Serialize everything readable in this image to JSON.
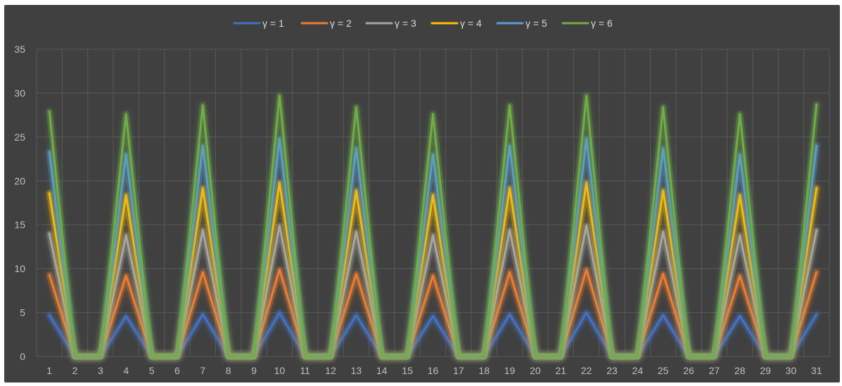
{
  "chart_data": {
    "type": "line",
    "title": "",
    "xlabel": "",
    "ylabel": "",
    "x": [
      1,
      2,
      3,
      4,
      5,
      6,
      7,
      8,
      9,
      10,
      11,
      12,
      13,
      14,
      15,
      16,
      17,
      18,
      19,
      20,
      21,
      22,
      23,
      24,
      25,
      26,
      27,
      28,
      29,
      30,
      31
    ],
    "ylim": [
      0,
      35
    ],
    "yticks": [
      0,
      5,
      10,
      15,
      20,
      25,
      30,
      35
    ],
    "grid": true,
    "legend_position": "top",
    "background_color": "#404040",
    "gridline_color": "#595959",
    "series": [
      {
        "name": "γ = 1",
        "color": "#4472C4",
        "values": [
          4.7,
          0,
          0,
          4.6,
          0,
          0,
          4.8,
          0,
          0,
          5.0,
          0,
          0,
          4.7,
          0,
          0,
          4.6,
          0,
          0,
          4.8,
          0,
          0,
          5.0,
          0,
          0,
          4.7,
          0,
          0,
          4.6,
          0,
          0,
          4.8
        ]
      },
      {
        "name": "γ = 2",
        "color": "#ED7D31",
        "values": [
          9.3,
          0,
          0,
          9.2,
          0,
          0,
          9.6,
          0,
          0,
          9.9,
          0,
          0,
          9.4,
          0,
          0,
          9.2,
          0,
          0,
          9.6,
          0,
          0,
          9.9,
          0,
          0,
          9.4,
          0,
          0,
          9.2,
          0,
          0,
          9.6
        ]
      },
      {
        "name": "γ = 3",
        "color": "#A5A5A5",
        "values": [
          14.0,
          0,
          0,
          13.8,
          0,
          0,
          14.4,
          0,
          0,
          14.9,
          0,
          0,
          14.2,
          0,
          0,
          13.8,
          0,
          0,
          14.4,
          0,
          0,
          14.9,
          0,
          0,
          14.2,
          0,
          0,
          13.8,
          0,
          0,
          14.4
        ]
      },
      {
        "name": "γ = 4",
        "color": "#FFC000",
        "values": [
          18.6,
          0,
          0,
          18.4,
          0,
          0,
          19.2,
          0,
          0,
          19.8,
          0,
          0,
          18.9,
          0,
          0,
          18.4,
          0,
          0,
          19.2,
          0,
          0,
          19.8,
          0,
          0,
          18.9,
          0,
          0,
          18.4,
          0,
          0,
          19.2
        ]
      },
      {
        "name": "γ = 5",
        "color": "#5B9BD5",
        "values": [
          23.3,
          0,
          0,
          23.0,
          0,
          0,
          24.0,
          0,
          0,
          24.8,
          0,
          0,
          23.7,
          0,
          0,
          23.0,
          0,
          0,
          24.0,
          0,
          0,
          24.8,
          0,
          0,
          23.7,
          0,
          0,
          23.0,
          0,
          0,
          24.0
        ]
      },
      {
        "name": "γ = 6",
        "color": "#70AD47",
        "values": [
          27.9,
          0,
          0,
          27.6,
          0,
          0,
          28.6,
          0,
          0,
          29.7,
          0,
          0,
          28.4,
          0,
          0,
          27.6,
          0,
          0,
          28.6,
          0,
          0,
          29.7,
          0,
          0,
          28.4,
          0,
          0,
          27.6,
          0,
          0,
          28.7
        ]
      }
    ]
  }
}
